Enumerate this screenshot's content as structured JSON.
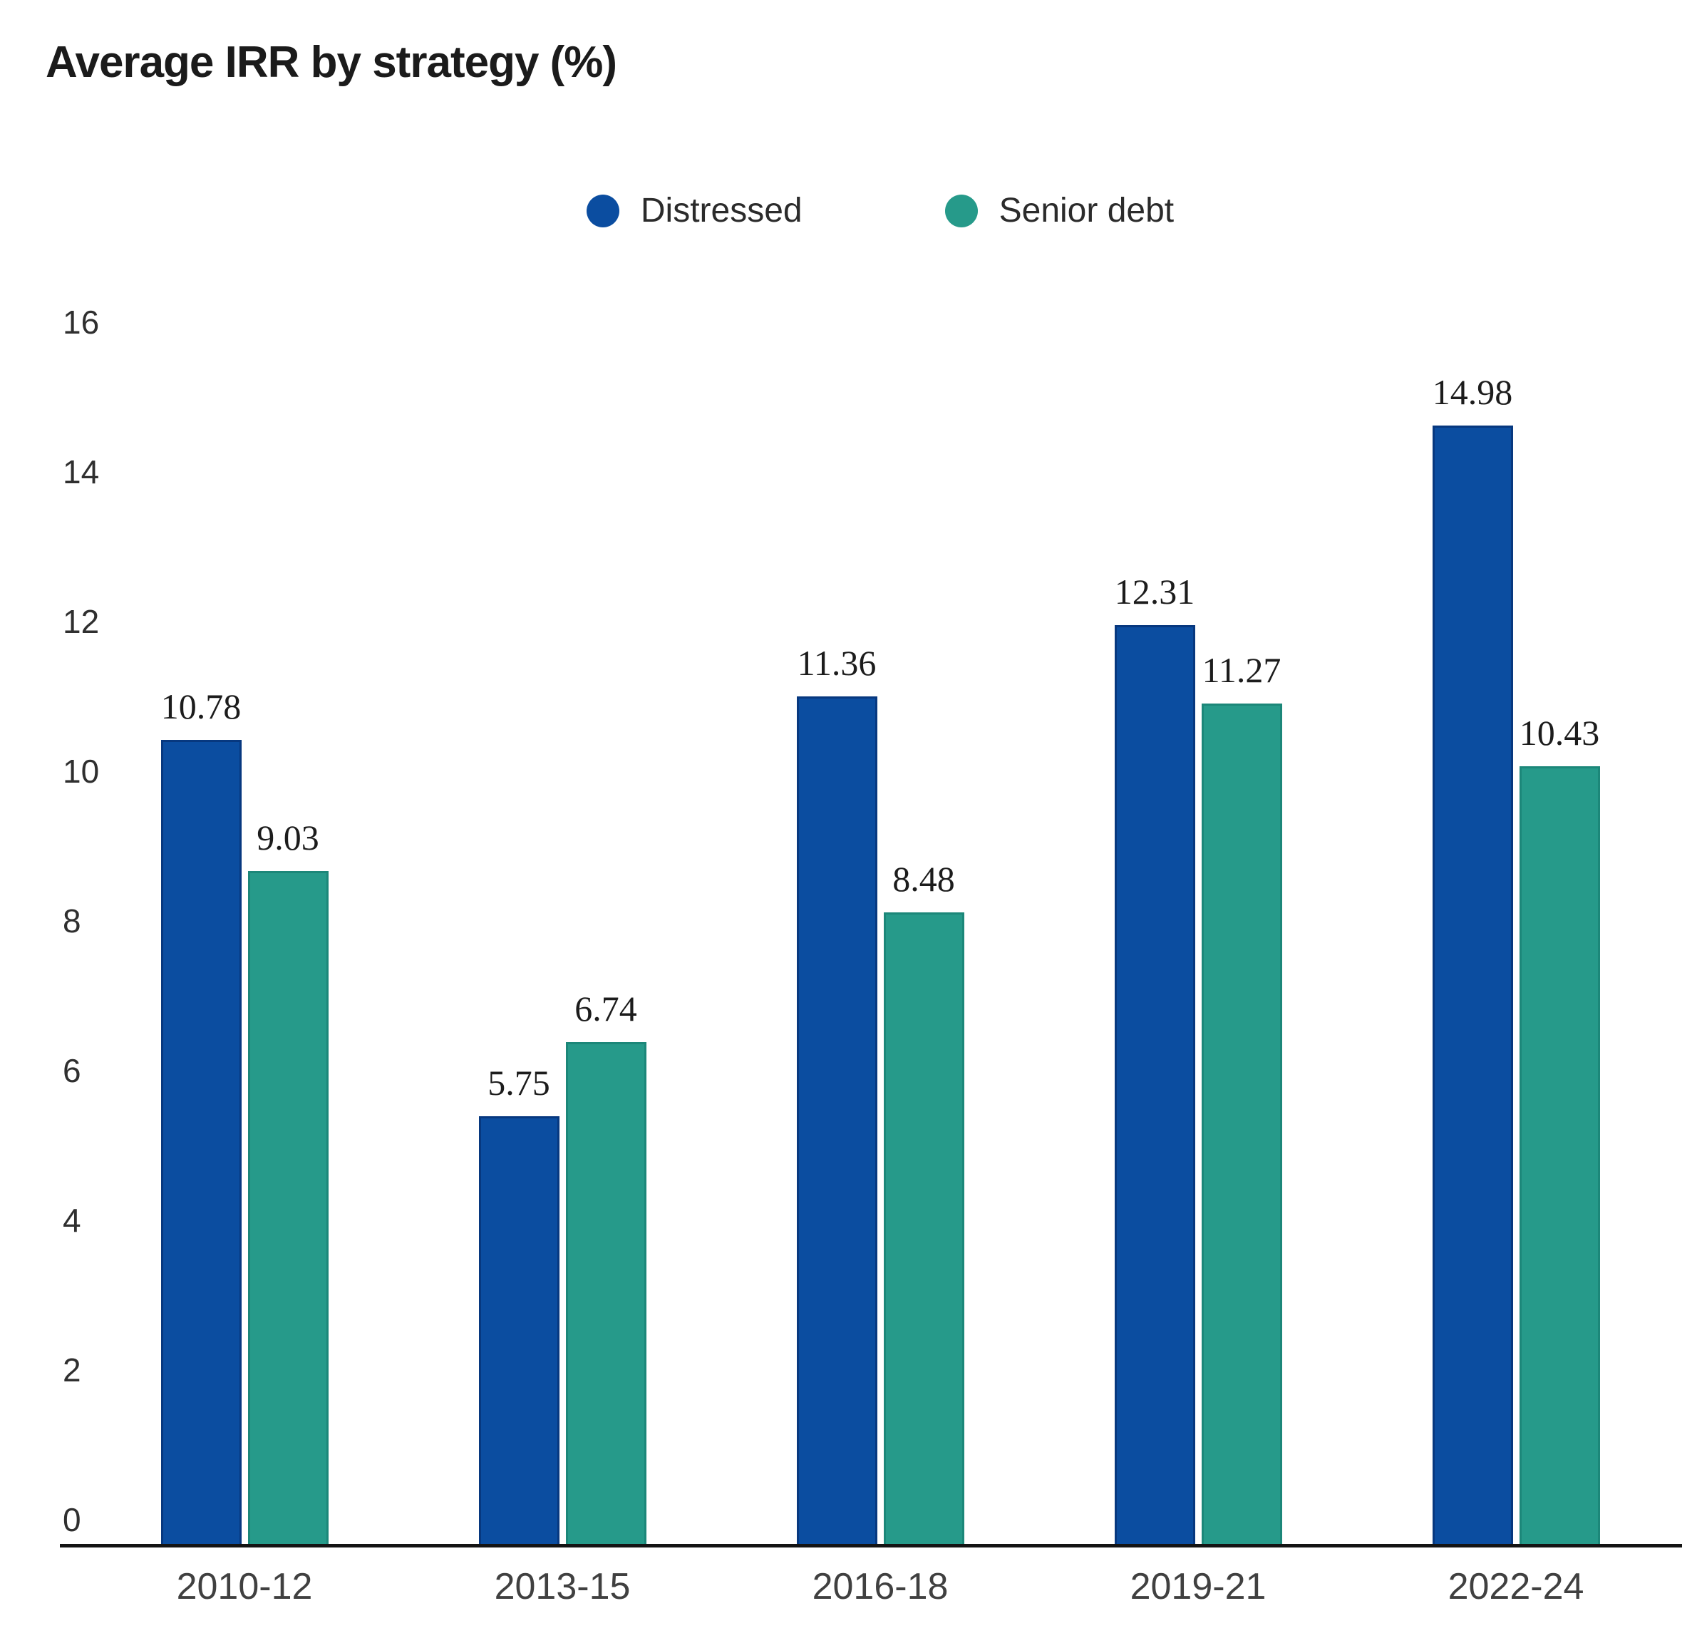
{
  "title": "Average IRR by strategy (%)",
  "chart_data": {
    "type": "bar",
    "title": "Average IRR by strategy (%)",
    "categories": [
      "2010-12",
      "2013-15",
      "2016-18",
      "2019-21",
      "2022-24"
    ],
    "series": [
      {
        "name": "Distressed",
        "color": "#0b4da0",
        "values": [
          10.78,
          5.75,
          11.36,
          12.31,
          14.98
        ]
      },
      {
        "name": "Senior debt",
        "color": "#269a8a",
        "values": [
          9.03,
          6.74,
          8.48,
          11.27,
          10.43
        ]
      }
    ],
    "value_labels": [
      "10.78",
      "5.75",
      "11.36",
      "12.31",
      "14.98",
      "9.03",
      "6.74",
      "8.48",
      "11.27",
      "10.43"
    ],
    "xlabel": "",
    "ylabel": "",
    "ylim": [
      0,
      16
    ],
    "yticks": [
      "0",
      "2",
      "4",
      "6",
      "8",
      "10",
      "12",
      "14",
      "16"
    ],
    "grid": false,
    "legend_position": "top-center"
  }
}
